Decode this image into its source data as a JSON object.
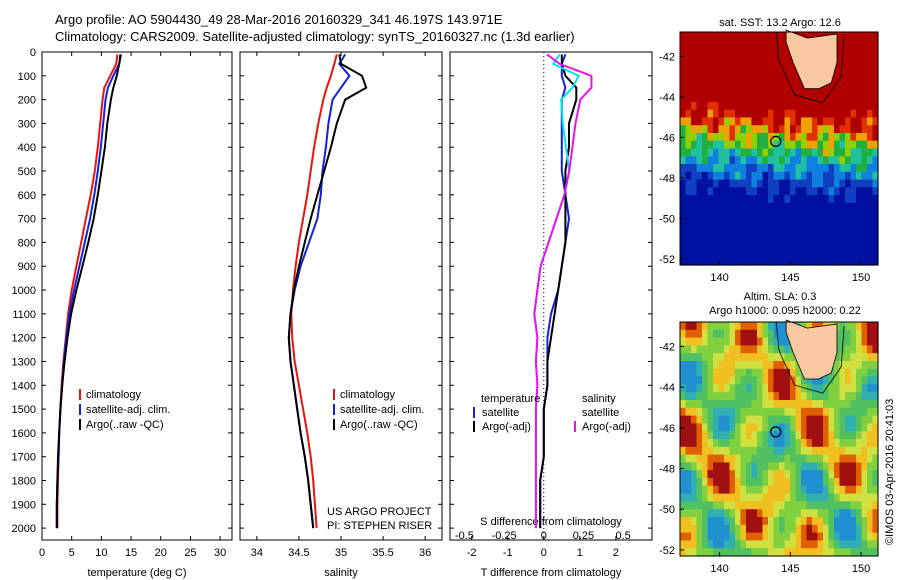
{
  "header": {
    "line1": "Argo profile: AO 5904430_49 28-Mar-2016 20160329_341 46.197S 143.971E",
    "line2": "Climatology: CARS2009. Satellite-adjusted climatology: synTS_20160327.nc (1.3d earlier)"
  },
  "map_top": {
    "title": "sat. SST: 13.2 Argo: 12.6",
    "yticks": [
      "-42",
      "-44",
      "-46",
      "-48",
      "-50",
      "-52"
    ],
    "xticks": [
      "140",
      "145",
      "150"
    ],
    "float_lon": 143.97,
    "float_lat": -46.2
  },
  "map_bottom": {
    "title1": "Altim. SLA: 0.3",
    "title2": "Argo h1000: 0.095 h2000: 0.22",
    "yticks": [
      "-42",
      "-44",
      "-46",
      "-48",
      "-50",
      "-52"
    ],
    "xticks": [
      "140",
      "145",
      "150"
    ],
    "float_lon": 143.97,
    "float_lat": -46.2
  },
  "footer_stamp": "©IMOS 03-Apr-2016 20:41:03",
  "colors": {
    "climatology": "#ee1111",
    "satellite": "#1122dd",
    "argo": "#000000",
    "cyan": "#00e5ee",
    "magenta": "#ee11ee"
  },
  "chart_data": [
    {
      "type": "line",
      "xlabel": "temperature (deg C)",
      "ylabel": "",
      "xlim": [
        0,
        32
      ],
      "ylim": [
        2050,
        0
      ],
      "xticks": [
        "0",
        "5",
        "10",
        "15",
        "20",
        "25",
        "30"
      ],
      "yticks": [
        "0",
        "100",
        "200",
        "300",
        "400",
        "500",
        "600",
        "700",
        "800",
        "900",
        "1000",
        "1100",
        "1200",
        "1300",
        "1400",
        "1500",
        "1600",
        "1700",
        "1800",
        "1900",
        "2000"
      ],
      "legend": [
        "climatology",
        "satellite-adj. clim.",
        "Argo(..raw -QC)"
      ],
      "series": [
        {
          "name": "climatology",
          "depth": [
            10,
            50,
            100,
            150,
            200,
            300,
            400,
            500,
            600,
            700,
            800,
            900,
            1000,
            1100,
            1200,
            1300,
            1400,
            1500,
            1600,
            1700,
            1800,
            1900,
            2000
          ],
          "values": [
            12.7,
            12.5,
            11.5,
            10.5,
            10.2,
            9.8,
            9.4,
            8.9,
            8.2,
            7.4,
            6.6,
            5.8,
            5.0,
            4.4,
            4.0,
            3.6,
            3.3,
            3.1,
            2.9,
            2.8,
            2.7,
            2.6,
            2.6
          ]
        },
        {
          "name": "satellite-adj. clim.",
          "depth": [
            10,
            50,
            100,
            150,
            200,
            300,
            400,
            500,
            600,
            700,
            800,
            900,
            1000,
            1100,
            1200,
            1300,
            1400,
            1500,
            1600,
            1700,
            1800,
            1900,
            2000
          ],
          "values": [
            13.3,
            13.0,
            12.0,
            11.1,
            10.7,
            10.3,
            9.9,
            9.4,
            8.8,
            8.1,
            7.2,
            6.3,
            5.4,
            4.6,
            4.1,
            3.7,
            3.4,
            3.1,
            2.9,
            2.8,
            2.6,
            2.5,
            2.5
          ]
        },
        {
          "name": "Argo(..raw -QC)",
          "depth": [
            10,
            50,
            100,
            150,
            200,
            300,
            400,
            500,
            600,
            700,
            800,
            900,
            1000,
            1100,
            1200,
            1300,
            1400,
            1500,
            1600,
            1700,
            1800,
            1900,
            2000
          ],
          "values": [
            13.2,
            13.0,
            12.6,
            12.0,
            11.6,
            11.0,
            10.6,
            10.0,
            9.4,
            8.7,
            7.8,
            6.8,
            5.8,
            4.9,
            4.3,
            3.8,
            3.4,
            3.1,
            2.9,
            2.7,
            2.6,
            2.5,
            2.5
          ]
        }
      ]
    },
    {
      "type": "line",
      "xlabel": "salinity",
      "ylabel": "",
      "xlim": [
        33.8,
        36.2
      ],
      "ylim": [
        2050,
        0
      ],
      "xticks": [
        "34",
        "34.5",
        "35",
        "35.5",
        "36"
      ],
      "legend": [
        "climatology",
        "satellite-adj. clim.",
        "Argo(..raw -QC)"
      ],
      "annotation": [
        "US ARGO PROJECT",
        "PI: STEPHEN RISER"
      ],
      "series": [
        {
          "name": "climatology",
          "depth": [
            10,
            50,
            100,
            150,
            200,
            300,
            400,
            500,
            600,
            700,
            800,
            900,
            1000,
            1100,
            1200,
            1300,
            1400,
            1500,
            1600,
            1700,
            1800,
            1900,
            2000
          ],
          "values": [
            34.95,
            34.92,
            34.88,
            34.83,
            34.79,
            34.73,
            34.68,
            34.64,
            34.6,
            34.55,
            34.5,
            34.46,
            34.43,
            34.41,
            34.42,
            34.45,
            34.5,
            34.55,
            34.6,
            34.64,
            34.67,
            34.69,
            34.71
          ]
        },
        {
          "name": "satellite-adj. clim.",
          "depth": [
            10,
            50,
            100,
            150,
            200,
            300,
            400,
            500,
            600,
            700,
            800,
            900,
            1000,
            1100,
            1200,
            1300,
            1400,
            1500,
            1600,
            1700,
            1800,
            1900,
            2000
          ],
          "values": [
            35.05,
            34.98,
            35.1,
            35.0,
            34.9,
            34.85,
            34.82,
            34.78,
            34.76,
            34.72,
            34.62,
            34.52,
            34.45,
            34.4,
            34.38,
            34.4,
            34.44,
            34.48,
            34.52,
            34.57,
            34.61,
            34.64,
            34.67
          ]
        },
        {
          "name": "Argo(..raw -QC)",
          "depth": [
            10,
            50,
            100,
            150,
            200,
            300,
            400,
            500,
            600,
            700,
            800,
            900,
            1000,
            1100,
            1200,
            1300,
            1400,
            1500,
            1600,
            1700,
            1800,
            1900,
            2000
          ],
          "values": [
            34.98,
            35.0,
            35.25,
            35.3,
            35.05,
            34.95,
            34.88,
            34.8,
            34.72,
            34.64,
            34.57,
            34.5,
            34.44,
            34.4,
            34.38,
            34.4,
            34.44,
            34.48,
            34.52,
            34.57,
            34.61,
            34.64,
            34.67
          ]
        }
      ]
    },
    {
      "type": "line",
      "xlabel": "T difference from climatology",
      "xlabel2": "S difference from climatology",
      "xlim": [
        -2.6,
        3.0
      ],
      "ylim": [
        2050,
        0
      ],
      "xticks": [
        "-2",
        "-1",
        "0",
        "1",
        "2"
      ],
      "xticks2": [
        "-0.5",
        "-0.25",
        "0",
        "0.25",
        "0.5"
      ],
      "legend_left": [
        "temperature",
        "satellite",
        "Argo(-adj)"
      ],
      "legend_right": [
        "salinity",
        "satellite",
        "Argo(-adj)"
      ],
      "series": [
        {
          "name": "satellite",
          "depth": [
            10,
            50,
            100,
            150,
            200,
            300,
            400,
            500,
            600,
            700,
            800,
            900,
            1000,
            1100,
            1200,
            1300,
            1400,
            1500,
            1600,
            1700,
            1800,
            1900,
            2000
          ],
          "values": [
            0.6,
            0.5,
            0.5,
            0.6,
            0.5,
            0.5,
            0.5,
            0.5,
            0.6,
            0.7,
            0.6,
            0.5,
            0.4,
            0.2,
            0.1,
            0.1,
            0.1,
            0.0,
            0.0,
            0.0,
            -0.1,
            -0.1,
            -0.1
          ]
        },
        {
          "name": "Argo(-adj)",
          "depth": [
            10,
            50,
            100,
            150,
            200,
            300,
            400,
            500,
            600,
            700,
            800,
            900,
            1000,
            1100,
            1200,
            1300,
            1400,
            1500,
            1600,
            1700,
            1800,
            1900,
            2000
          ],
          "values": [
            0.5,
            0.5,
            0.6,
            0.9,
            0.9,
            0.7,
            0.7,
            0.6,
            0.6,
            0.6,
            0.6,
            0.5,
            0.4,
            0.3,
            0.2,
            0.1,
            0.1,
            0.0,
            0.0,
            0.0,
            -0.1,
            -0.1,
            -0.1
          ]
        },
        {
          "name": "salinity satellite",
          "depth": [
            10,
            50,
            100,
            150,
            200,
            300,
            400,
            500,
            600,
            700,
            800,
            900,
            1000,
            1100,
            1200,
            1300,
            1400,
            1500,
            1600,
            1700,
            1800,
            1900,
            2000
          ],
          "values": [
            0.1,
            0.06,
            0.22,
            0.18,
            0.11,
            0.12,
            0.14,
            0.16,
            0.13,
            0.08,
            0.03,
            -0.02,
            -0.04,
            -0.06,
            -0.04,
            -0.05,
            -0.04,
            -0.05,
            -0.05,
            -0.05,
            -0.05,
            -0.05,
            -0.05
          ]
        },
        {
          "name": "salinity Argo(-adj)",
          "depth": [
            10,
            50,
            100,
            150,
            200,
            300,
            400,
            500,
            600,
            700,
            800,
            900,
            1000,
            1100,
            1200,
            1300,
            1400,
            1500,
            1600,
            1700,
            1800,
            1900,
            2000
          ],
          "values": [
            0.02,
            0.1,
            0.3,
            0.3,
            0.23,
            0.2,
            0.18,
            0.16,
            0.13,
            0.08,
            0.03,
            -0.02,
            -0.04,
            -0.06,
            -0.04,
            -0.05,
            -0.04,
            -0.05,
            -0.05,
            -0.05,
            -0.05,
            -0.05,
            -0.05
          ]
        }
      ]
    }
  ]
}
